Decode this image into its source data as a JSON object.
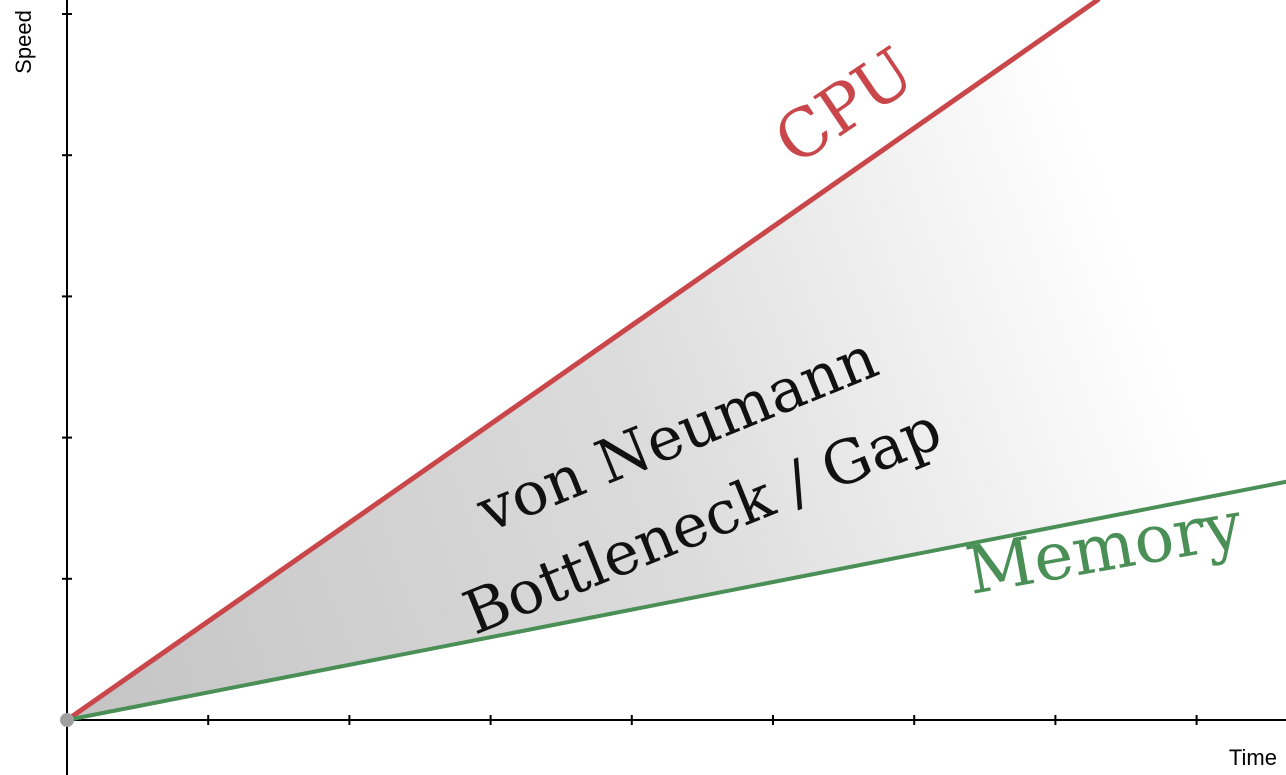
{
  "chart_data": {
    "type": "line",
    "title": "",
    "xlabel": "Time",
    "ylabel": "Speed",
    "xlim": [
      0,
      8.7
    ],
    "ylim": [
      0,
      5.1
    ],
    "grid": false,
    "legend": "none",
    "series": [
      {
        "name": "CPU",
        "color": "#c9474a",
        "x": [
          0,
          7.3
        ],
        "y": [
          0,
          5.1
        ]
      },
      {
        "name": "Memory",
        "color": "#4a8f56",
        "x": [
          0,
          8.7
        ],
        "y": [
          0,
          1.7
        ]
      }
    ],
    "annotations": [
      {
        "lines": [
          "von Neumann",
          "Bottleneck / Gap"
        ]
      }
    ],
    "colors": {
      "gap_fill_start": "#c4c4c4",
      "gap_fill_end": "#ffffff",
      "axis": "#000000",
      "origin": "#a0a0a0"
    }
  }
}
